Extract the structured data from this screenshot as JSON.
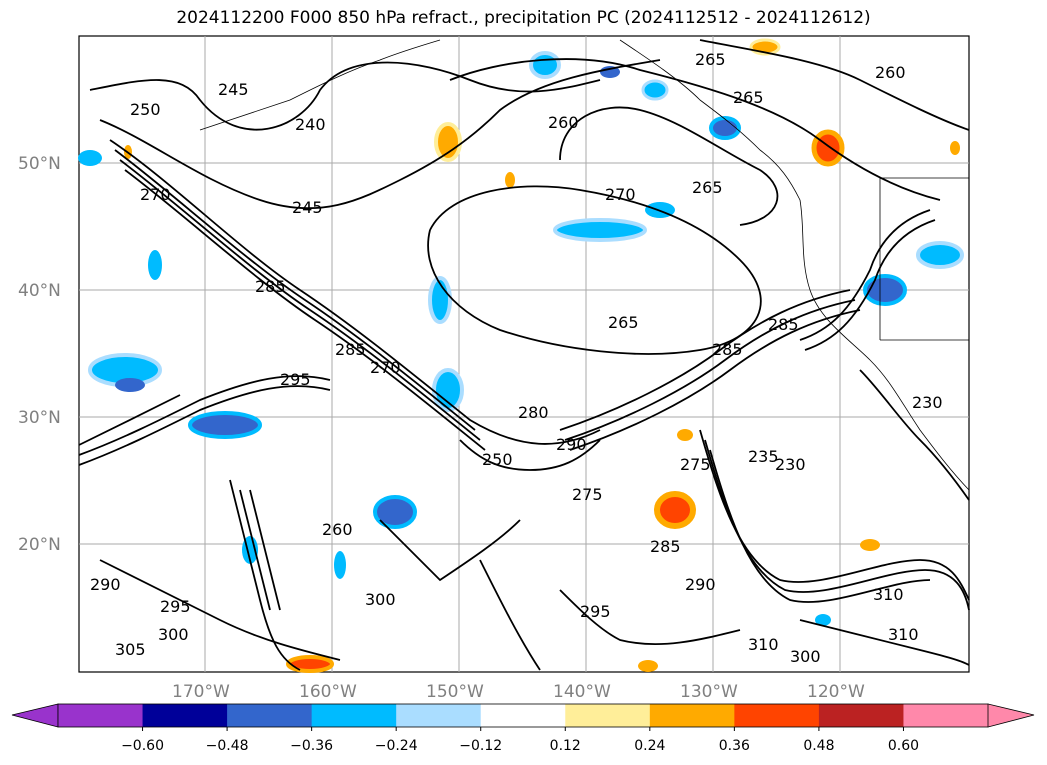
{
  "title": "2024112200 F000 850 hPa refract., precipitation PC (2024112512 - 2024112612)",
  "latitude_labels": [
    "50°N",
    "40°N",
    "30°N",
    "20°N"
  ],
  "longitude_labels": [
    "170°W",
    "160°W",
    "150°W",
    "140°W",
    "130°W",
    "120°W"
  ],
  "contour_labels": [
    "245",
    "240",
    "250",
    "270",
    "245",
    "285",
    "295",
    "270",
    "285",
    "260",
    "265",
    "265",
    "270",
    "265",
    "260",
    "265",
    "280",
    "290",
    "275",
    "285",
    "290",
    "285",
    "310",
    "310",
    "300",
    "235",
    "230",
    "230",
    "295",
    "295",
    "300",
    "310",
    "305",
    "290",
    "285",
    "300",
    "260",
    "250",
    "275"
  ],
  "colorbar": {
    "ticks": [
      "−0.60",
      "−0.48",
      "−0.36",
      "−0.24",
      "−0.12",
      "0.12",
      "0.24",
      "0.36",
      "0.48",
      "0.60"
    ],
    "colors": [
      "#9933cc",
      "#000099",
      "#3366cc",
      "#00bbff",
      "#aaddff",
      "#ffffff",
      "#ffee99",
      "#ffaa00",
      "#ff4400",
      "#bb2222",
      "#ff88aa"
    ]
  }
}
